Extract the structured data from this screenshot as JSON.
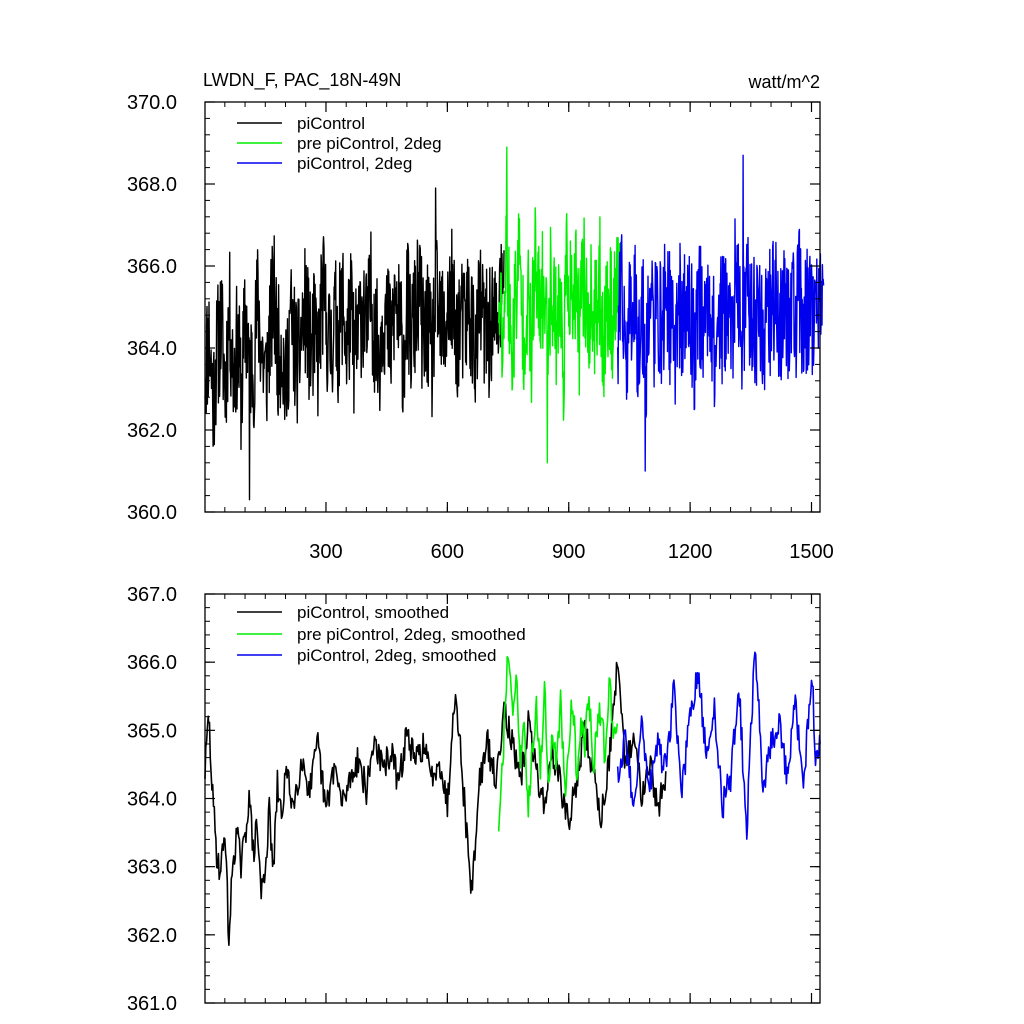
{
  "colors": {
    "picontrol": "#000000",
    "pre_picontrol_2deg": "#00ee00",
    "picontrol_2deg": "#0000ee"
  },
  "chart_data": [
    {
      "type": "line",
      "title": "LWDN_F, PAC_18N-49N",
      "units_label": "watt/m^2",
      "xlabel": "",
      "ylabel": "",
      "xlim": [
        1,
        1521
      ],
      "ylim": [
        360.0,
        370.0
      ],
      "x_ticks": [
        300,
        600,
        900,
        1200,
        1500
      ],
      "x_tick_labels": [
        "300",
        "600",
        "900",
        "1200",
        "1500"
      ],
      "y_ticks": [
        360.0,
        362.0,
        364.0,
        366.0,
        368.0,
        370.0
      ],
      "y_tick_labels": [
        "360.0",
        "362.0",
        "364.0",
        "366.0",
        "368.0",
        "370.0"
      ],
      "grid": false,
      "legend_position": "top-left",
      "series": [
        {
          "name": "piControl",
          "color_key": "picontrol",
          "x_start": 1,
          "x_step": 10,
          "values": [
            363.6,
            364.2,
            362.8,
            363.9,
            364.6,
            363.1,
            364.9,
            363.4,
            364.1,
            362.9,
            364.7,
            363.8,
            363.5,
            365.1,
            364.0,
            363.2,
            364.4,
            365.3,
            363.9,
            364.2,
            362.9,
            364.8,
            364.1,
            363.6,
            364.5,
            365.0,
            363.8,
            364.3,
            363.7,
            365.4,
            364.6,
            363.9,
            364.8,
            364.2,
            365.2,
            364.0,
            364.9,
            363.7,
            364.5,
            365.1,
            364.3,
            365.3,
            364.4,
            363.8,
            365.0,
            364.6,
            364.1,
            365.2,
            364.5,
            363.9,
            365.1,
            364.2,
            364.8,
            365.4,
            364.0,
            364.6,
            363.6,
            365.2,
            364.7,
            364.3,
            364.9,
            365.3,
            364.1,
            364.7,
            364.4,
            365.0,
            364.6,
            363.9,
            365.1,
            364.5,
            364.2,
            364.8,
            364.4,
            365.2
          ],
          "summary": {
            "min": 360.3,
            "min_x": 111,
            "max": 367.9,
            "max_x": 571,
            "mean": 364.2
          }
        },
        {
          "name": "pre piControl, 2deg",
          "color_key": "pre_picontrol_2deg",
          "x_start": 727,
          "x_step": 10,
          "values": [
            365.4,
            364.1,
            366.6,
            363.8,
            365.0,
            366.2,
            364.4,
            365.3,
            363.9,
            366.0,
            364.8,
            365.5,
            364.2,
            365.8,
            364.6,
            365.1,
            363.7,
            366.3,
            364.9,
            365.4,
            364.3,
            365.9,
            364.7,
            365.0,
            364.5,
            365.6,
            364.1,
            365.2,
            364.8,
            365.3
          ],
          "summary": {
            "min": 361.2,
            "min_x": 847,
            "max": 368.9,
            "max_x": 747,
            "mean": 364.9
          }
        },
        {
          "name": "piControl, 2deg",
          "color_key": "picontrol_2deg",
          "x_start": 1021,
          "x_step": 10,
          "values": [
            364.4,
            365.2,
            363.9,
            364.8,
            365.6,
            364.1,
            364.9,
            363.8,
            365.3,
            364.5,
            365.0,
            364.2,
            365.7,
            364.6,
            363.9,
            365.4,
            364.3,
            365.1,
            364.7,
            364.0,
            365.5,
            364.4,
            364.9,
            365.2,
            363.7,
            365.0,
            364.6,
            365.3,
            364.1,
            365.6,
            364.8,
            364.3,
            365.4,
            364.9,
            364.5,
            365.1,
            364.2,
            365.3,
            364.7,
            365.6,
            364.4,
            365.0,
            364.8,
            365.2,
            364.6,
            365.4,
            364.3,
            365.1,
            364.9,
            365.0,
            364.7
          ],
          "summary": {
            "min": 361.0,
            "min_x": 1089,
            "max": 368.7,
            "max_x": 1331,
            "mean": 364.7
          }
        }
      ]
    },
    {
      "type": "line",
      "title": "",
      "xlabel": "",
      "ylabel": "",
      "xlim": [
        1,
        1521
      ],
      "ylim": [
        361.0,
        367.0
      ],
      "x_ticks": [
        300,
        600,
        900,
        1200,
        1500
      ],
      "y_ticks": [
        361.0,
        362.0,
        363.0,
        364.0,
        365.0,
        366.0,
        367.0
      ],
      "y_tick_labels": [
        "361.0",
        "362.0",
        "363.0",
        "364.0",
        "365.0",
        "366.0",
        "367.0"
      ],
      "grid": false,
      "legend_position": "top-left",
      "series": [
        {
          "name": "piControl, smoothed",
          "color_key": "picontrol",
          "x": [
            1,
            10,
            20,
            30,
            40,
            50,
            60,
            70,
            80,
            90,
            100,
            110,
            120,
            130,
            140,
            150,
            160,
            170,
            180,
            190,
            200,
            220,
            240,
            260,
            280,
            300,
            320,
            340,
            360,
            380,
            400,
            420,
            440,
            460,
            480,
            500,
            520,
            540,
            560,
            580,
            600,
            620,
            640,
            660,
            680,
            700,
            720,
            740,
            760,
            780,
            800,
            820,
            840,
            860,
            880,
            900,
            920,
            940,
            960,
            980,
            1000,
            1020,
            1040,
            1060,
            1080,
            1100,
            1120,
            1140
          ],
          "values": [
            364.4,
            365.2,
            364.0,
            363.2,
            362.9,
            363.6,
            361.9,
            363.1,
            363.5,
            363.0,
            363.4,
            364.1,
            363.2,
            363.6,
            362.6,
            363.0,
            363.8,
            362.9,
            364.2,
            363.7,
            364.4,
            363.9,
            364.6,
            364.1,
            364.8,
            363.8,
            364.5,
            363.9,
            364.3,
            364.6,
            364.1,
            364.9,
            364.4,
            364.7,
            364.2,
            365.0,
            364.5,
            364.8,
            364.3,
            364.6,
            363.9,
            365.7,
            364.1,
            362.6,
            364.3,
            364.8,
            364.2,
            365.4,
            364.8,
            364.2,
            365.1,
            364.4,
            363.9,
            364.7,
            364.2,
            363.6,
            364.3,
            365.0,
            364.4,
            363.7,
            364.6,
            365.9,
            364.5,
            364.9,
            364.1,
            364.6,
            363.8,
            364.4
          ],
          "summary": {
            "min": 361.9,
            "min_x": 61,
            "max": 365.9,
            "max_x": 1020
          }
        },
        {
          "name": "pre piControl, 2deg, smoothed",
          "color_key": "pre_picontrol_2deg",
          "x": [
            727,
            740,
            750,
            760,
            770,
            780,
            790,
            800,
            810,
            820,
            830,
            840,
            850,
            860,
            870,
            880,
            890,
            900,
            910,
            920,
            930,
            940,
            950,
            960,
            970,
            980,
            990,
            1000,
            1010,
            1020
          ],
          "values": [
            363.4,
            364.9,
            366.2,
            365.3,
            365.8,
            364.6,
            365.1,
            363.9,
            364.8,
            365.3,
            364.4,
            365.6,
            364.2,
            365.0,
            364.5,
            365.4,
            364.1,
            364.9,
            365.5,
            364.3,
            365.2,
            364.7,
            365.6,
            364.4,
            365.0,
            365.3,
            364.6,
            365.8,
            364.9,
            365.1
          ],
          "summary": {
            "min": 363.4,
            "min_x": 727,
            "max": 366.2,
            "max_x": 750
          }
        },
        {
          "name": "piControl, 2deg, smoothed",
          "color_key": "picontrol_2deg",
          "x": [
            1021,
            1040,
            1060,
            1080,
            1100,
            1120,
            1140,
            1160,
            1180,
            1200,
            1220,
            1240,
            1260,
            1280,
            1300,
            1320,
            1340,
            1360,
            1380,
            1400,
            1420,
            1440,
            1460,
            1480,
            1500,
            1510,
            1521
          ],
          "values": [
            364.3,
            364.9,
            363.9,
            365.1,
            364.2,
            364.8,
            364.4,
            365.6,
            364.1,
            365.2,
            365.8,
            364.6,
            365.3,
            363.9,
            364.3,
            365.7,
            363.5,
            366.3,
            364.2,
            364.8,
            365.1,
            364.3,
            365.4,
            364.1,
            365.9,
            364.7,
            364.8
          ],
          "summary": {
            "min": 363.4,
            "min_x": 1330,
            "max": 366.3,
            "max_x": 1341
          }
        }
      ]
    }
  ]
}
